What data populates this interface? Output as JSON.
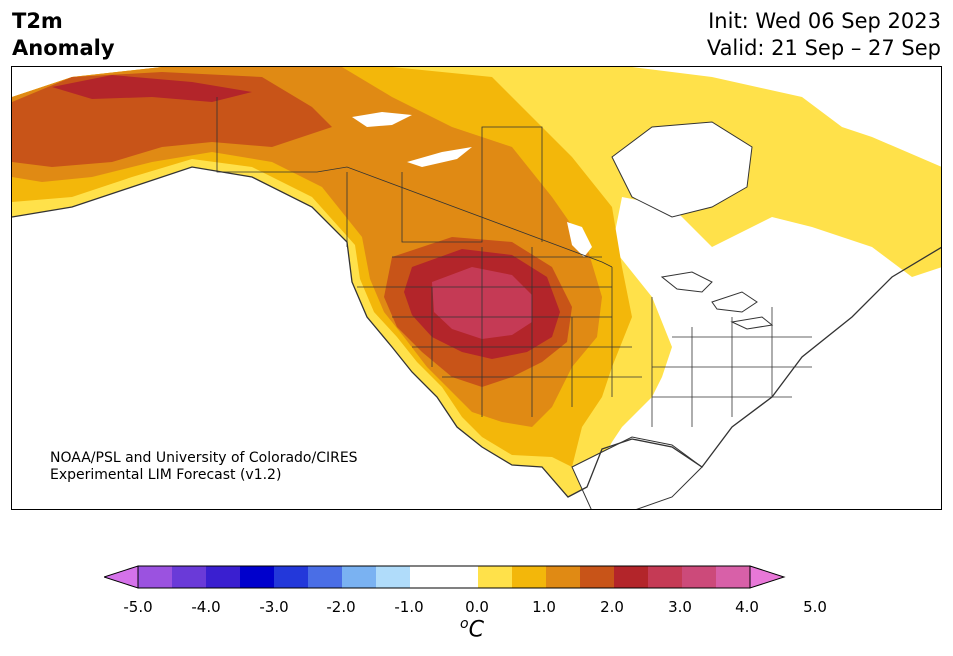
{
  "header": {
    "title_line1": "T2m",
    "title_line2": "Anomaly",
    "init": "Init: Wed 06 Sep 2023",
    "valid": "Valid: 21 Sep – 27 Sep"
  },
  "map": {
    "credit_line1": "NOAA/PSL and University of Colorado/CIRES",
    "credit_line2": "Experimental LIM Forecast (v1.2)",
    "colors": {
      "land_outline": "#333333",
      "water": "#ffffff",
      "anom_0_5": "#ffe14a",
      "anom_1_0": "#f3b70a",
      "anom_1_5": "#e08a14",
      "anom_2_0": "#c85418",
      "anom_2_5": "#b3252a",
      "anom_3_0": "#c53a55"
    }
  },
  "colorbar": {
    "ticks": [
      "-5.0",
      "-4.0",
      "-3.0",
      "-2.0",
      "-1.0",
      "0.0",
      "1.0",
      "2.0",
      "3.0",
      "4.0",
      "5.0"
    ],
    "unit_base": "o",
    "unit_letter": "C",
    "colors": [
      "#d572ea",
      "#9b52e0",
      "#6a3ad8",
      "#3a1fd0",
      "#0000cc",
      "#2338da",
      "#4a6ee6",
      "#7ab2f2",
      "#b0dcfa",
      "#ffffff",
      "#ffffff",
      "#ffe14a",
      "#f3b70a",
      "#e08a14",
      "#c85418",
      "#b3252a",
      "#c53a55",
      "#cc4a7a",
      "#d860a8",
      "#e878d8"
    ]
  }
}
